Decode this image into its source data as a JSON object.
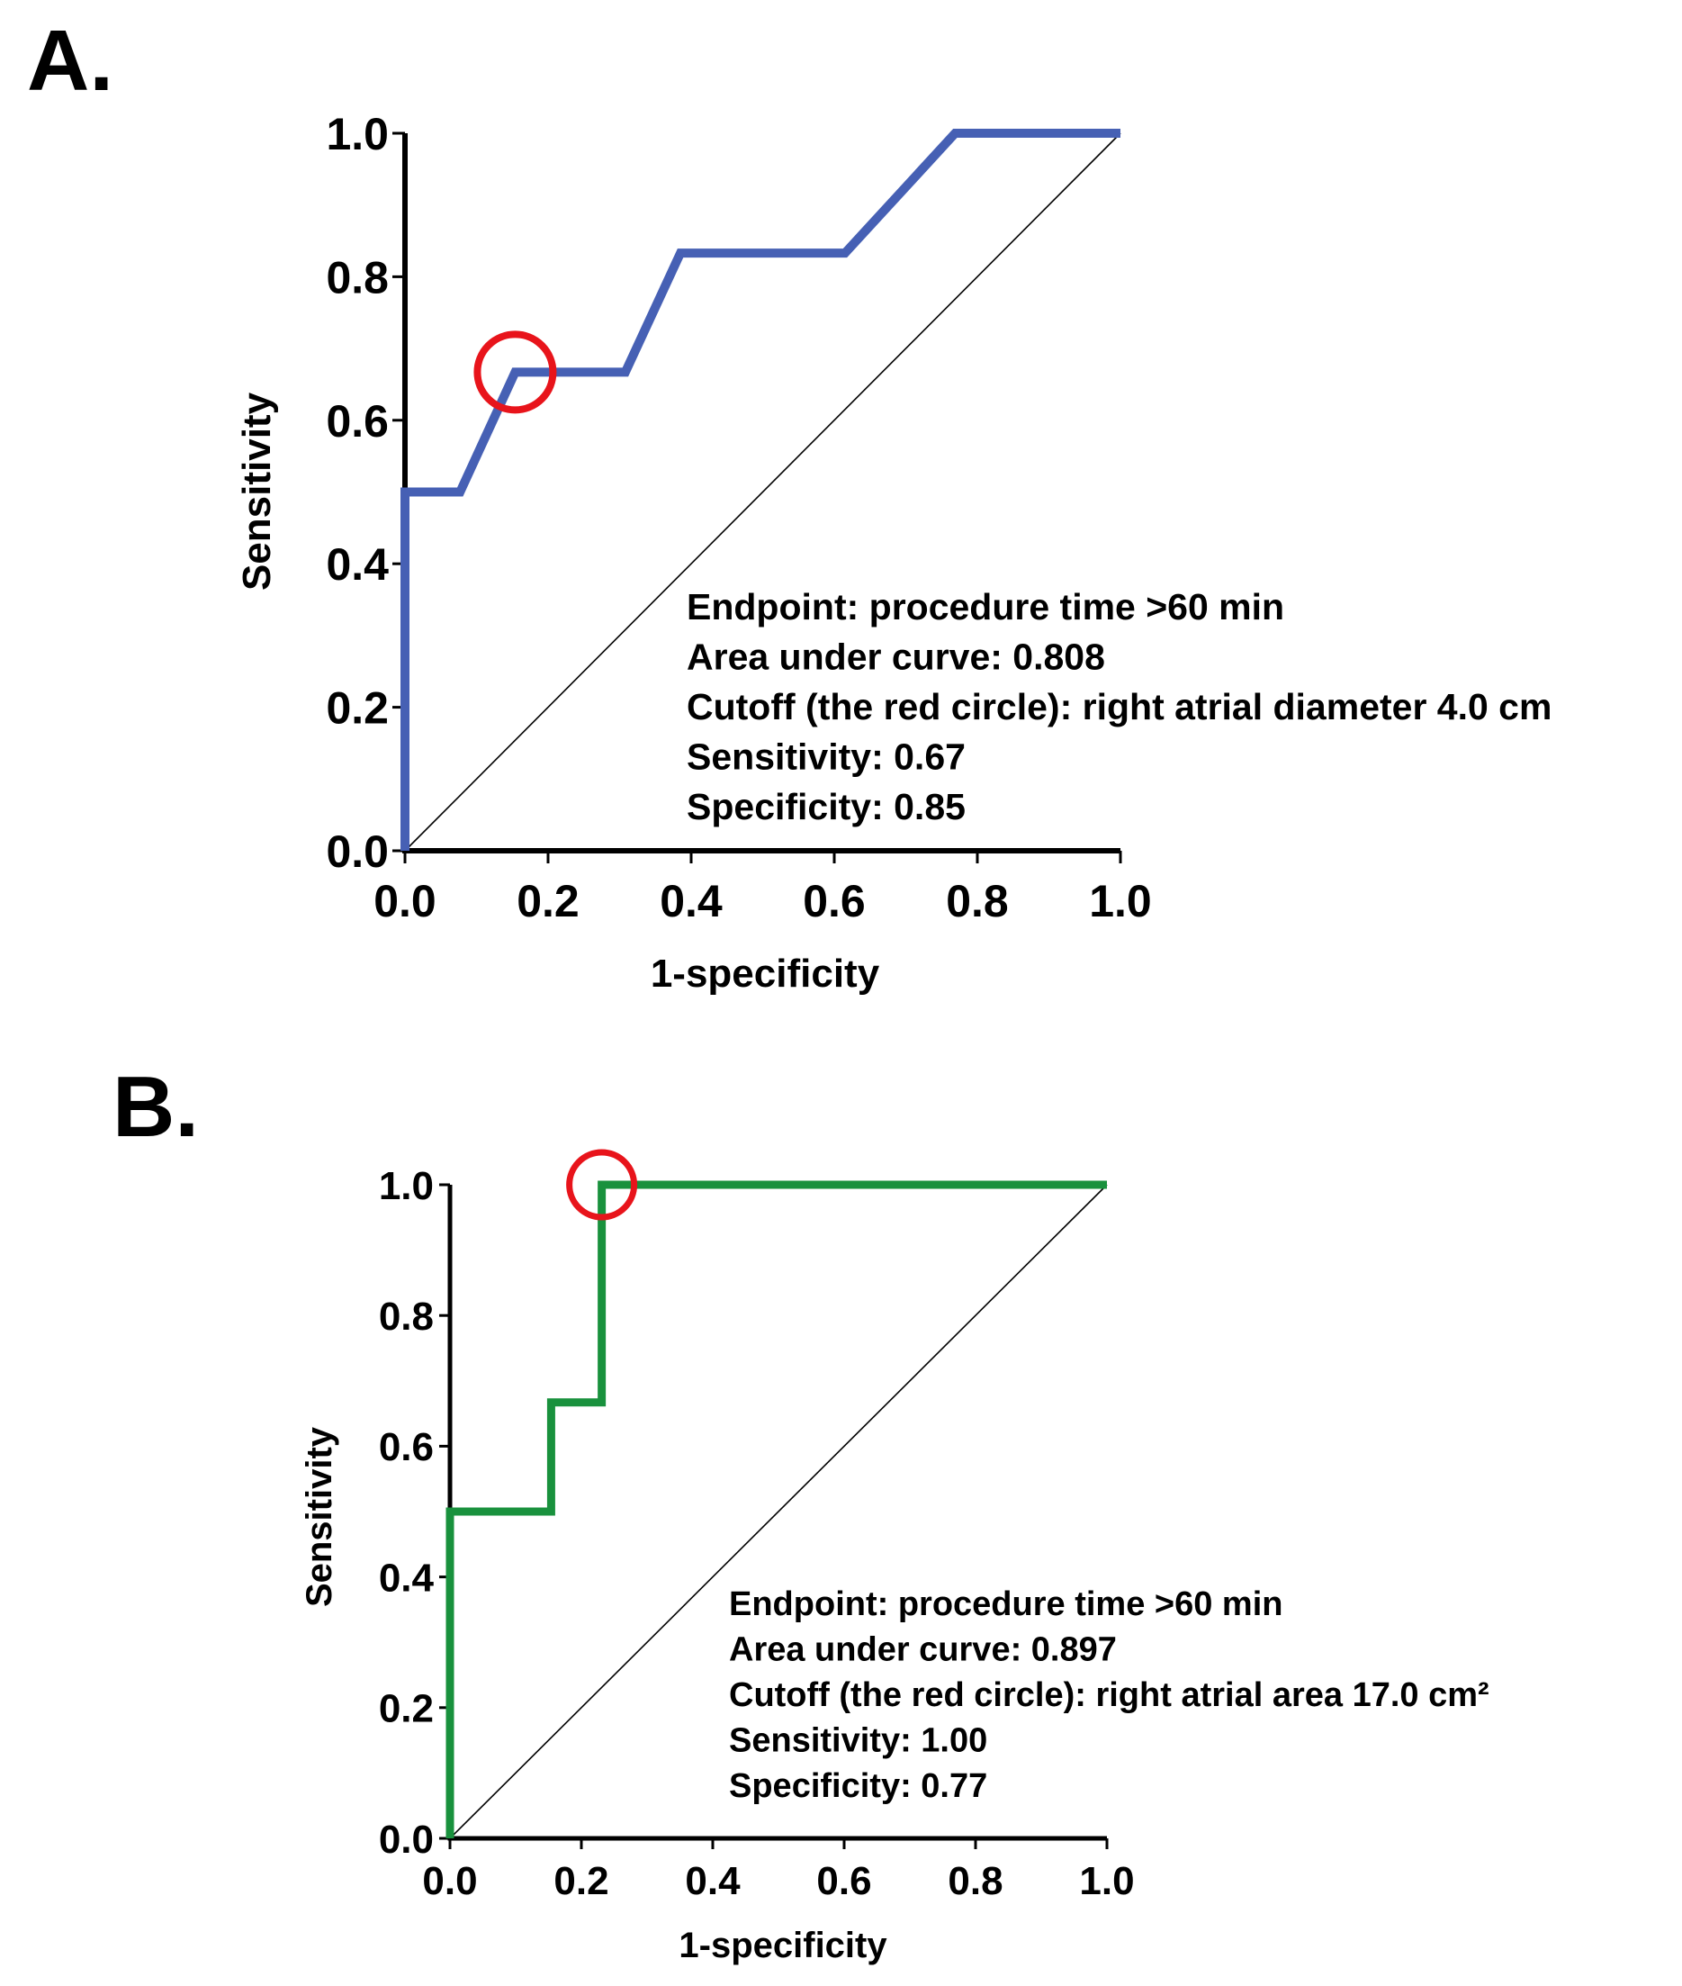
{
  "chart_data": [
    {
      "type": "line",
      "panel_label": "A.",
      "xlabel": "1-specificity",
      "ylabel": "Sensitivity",
      "xlim": [
        0,
        1
      ],
      "ylim": [
        0,
        1
      ],
      "x_ticks": [
        0,
        0.2,
        0.4,
        0.6,
        0.8,
        1.0
      ],
      "y_ticks": [
        0,
        0.2,
        0.4,
        0.6,
        0.8,
        1.0
      ],
      "x_tick_labels": [
        "0.0",
        "0.2",
        "0.4",
        "0.6",
        "0.8",
        "1.0"
      ],
      "y_tick_labels": [
        "0.0",
        "0.2",
        "0.4",
        "0.6",
        "0.8",
        "1.0"
      ],
      "series": [
        {
          "name": "ROC curve",
          "color": "#4660b4",
          "x": [
            0,
            0,
            0.077,
            0.154,
            0.308,
            0.385,
            0.615,
            0.769,
            1.0
          ],
          "y": [
            0,
            0.5,
            0.5,
            0.667,
            0.667,
            0.833,
            0.833,
            1.0,
            1.0
          ]
        },
        {
          "name": "reference line",
          "color": "#000000",
          "x": [
            0,
            1
          ],
          "y": [
            0,
            1
          ]
        }
      ],
      "cutoff_point": {
        "x": 0.154,
        "y": 0.667,
        "color": "#e8141b"
      },
      "annotations": [
        "Endpoint: procedure time >60 min",
        "Area under curve: 0.808",
        "Cutoff (the red circle): right atrial diameter 4.0 cm",
        "Sensitivity: 0.67",
        "Specificity: 0.85"
      ]
    },
    {
      "type": "line",
      "panel_label": "B.",
      "xlabel": "1-specificity",
      "ylabel": "Sensitivity",
      "xlim": [
        0,
        1
      ],
      "ylim": [
        0,
        1
      ],
      "x_ticks": [
        0,
        0.2,
        0.4,
        0.6,
        0.8,
        1.0
      ],
      "y_ticks": [
        0,
        0.2,
        0.4,
        0.6,
        0.8,
        1.0
      ],
      "x_tick_labels": [
        "0.0",
        "0.2",
        "0.4",
        "0.6",
        "0.8",
        "1.0"
      ],
      "y_tick_labels": [
        "0.0",
        "0.2",
        "0.4",
        "0.6",
        "0.8",
        "1.0"
      ],
      "series": [
        {
          "name": "ROC curve",
          "color": "#19913d",
          "x": [
            0,
            0,
            0.154,
            0.154,
            0.231,
            0.231,
            1.0
          ],
          "y": [
            0,
            0.5,
            0.5,
            0.667,
            0.667,
            1.0,
            1.0
          ]
        },
        {
          "name": "reference line",
          "color": "#000000",
          "x": [
            0,
            1
          ],
          "y": [
            0,
            1
          ]
        }
      ],
      "cutoff_point": {
        "x": 0.231,
        "y": 1.0,
        "color": "#e8141b"
      },
      "annotations": [
        "Endpoint: procedure time >60 min",
        "Area under curve: 0.897",
        "Cutoff (the red circle): right atrial area 17.0 cm²",
        "Sensitivity: 1.00",
        "Specificity: 0.77"
      ]
    }
  ]
}
